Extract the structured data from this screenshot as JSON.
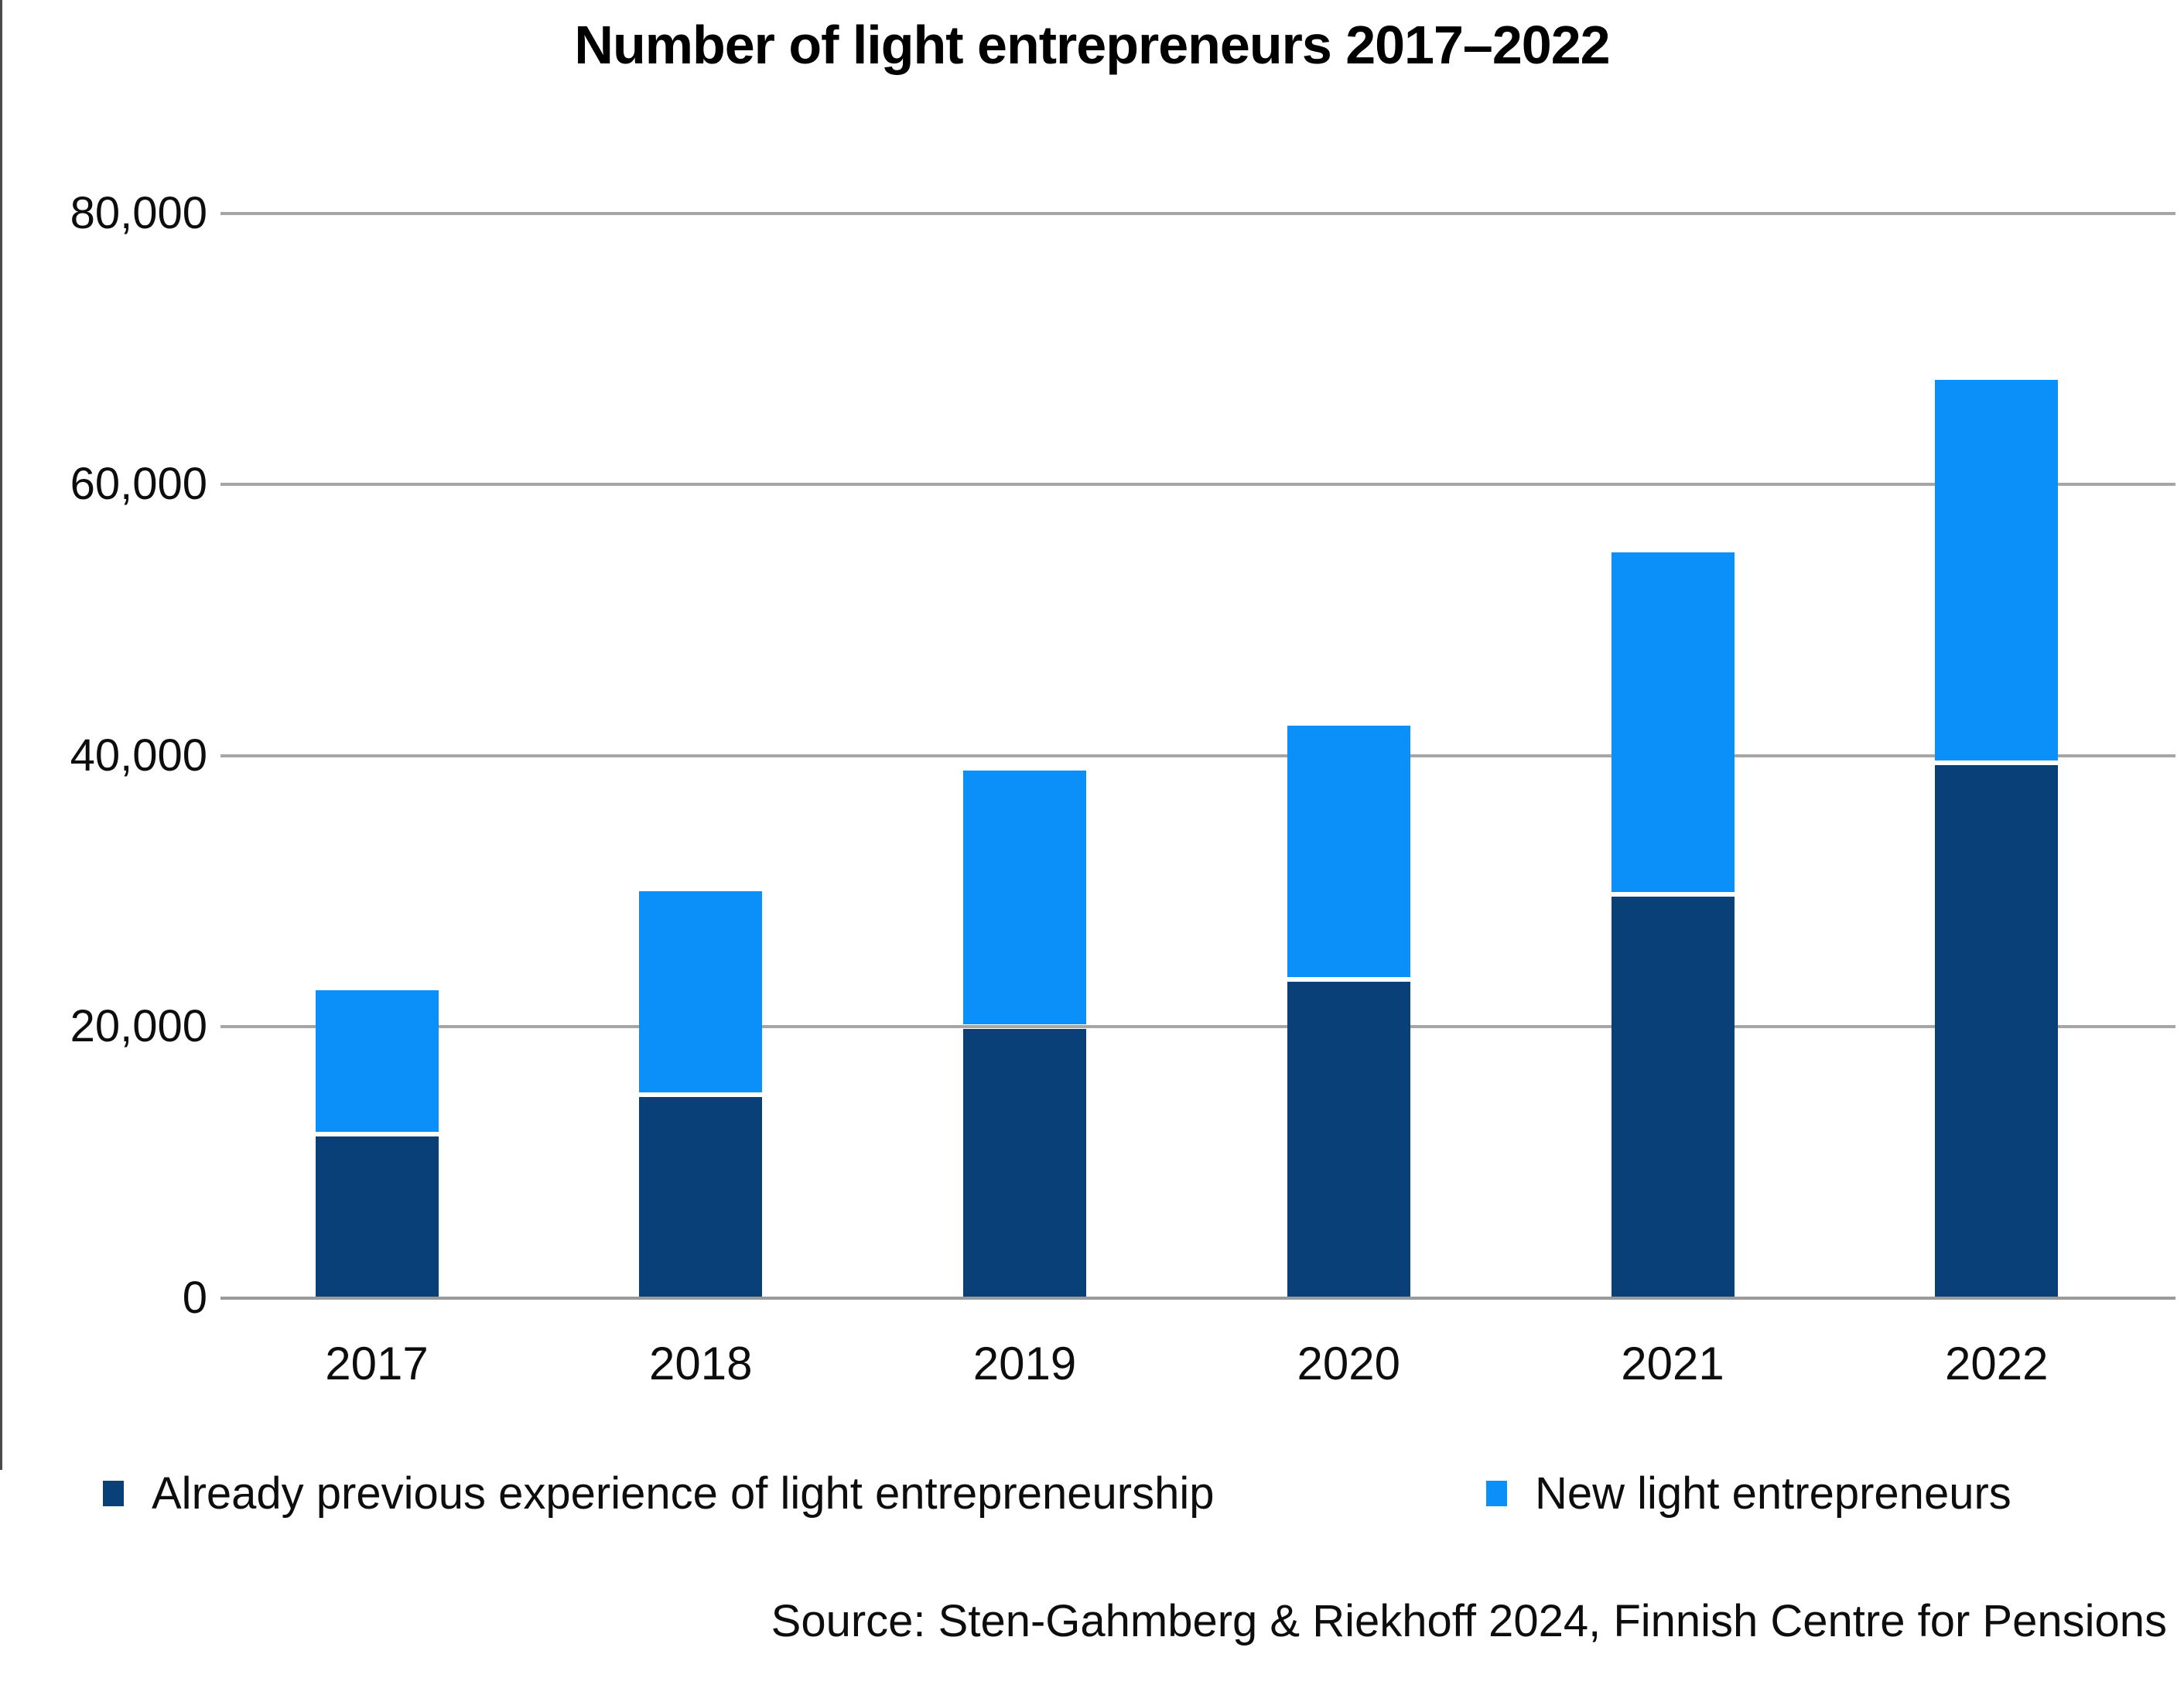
{
  "title": "Number of light entrepreneurs 2017–2022",
  "source": "Source: Sten-Gahmberg & Riekhoff 2024, Finnish Centre for Pensions",
  "colors": {
    "already_previous": "#0a4078",
    "new_entrepreneurs": "#0a90f8",
    "gridline": "#a6a6a6",
    "text": "#0d0d0d"
  },
  "legend": {
    "position": "bottom",
    "items": [
      {
        "label": "Already previous experience of light entrepreneurship",
        "color": "#0a4078"
      },
      {
        "label": "New light entrepreneurs",
        "color": "#0a90f8"
      }
    ]
  },
  "chart_data": {
    "type": "bar",
    "stacked": true,
    "title": "Number of light entrepreneurs 2017–2022",
    "categories": [
      "2017",
      "2018",
      "2019",
      "2020",
      "2021",
      "2022"
    ],
    "series": [
      {
        "name": "Already previous experience of light entrepreneurship",
        "color": "#0a4078",
        "values": [
          12100,
          15000,
          20000,
          23500,
          29800,
          39500
        ]
      },
      {
        "name": "New light entrepreneurs",
        "color": "#0a90f8",
        "values": [
          10600,
          15000,
          18900,
          18700,
          25200,
          28200
        ]
      }
    ],
    "stacked_totals": [
      22700,
      30000,
      38900,
      42200,
      55000,
      67700
    ],
    "xlabel": "",
    "ylabel": "",
    "ylim": [
      0,
      80000
    ],
    "ytick_step": 20000,
    "yticks": [
      {
        "value": 0,
        "label": "0"
      },
      {
        "value": 20000,
        "label": "20,000"
      },
      {
        "value": 40000,
        "label": "40,000"
      },
      {
        "value": 60000,
        "label": "60,000"
      },
      {
        "value": 80000,
        "label": "80,000"
      }
    ],
    "grid": true,
    "legend_position": "bottom"
  }
}
